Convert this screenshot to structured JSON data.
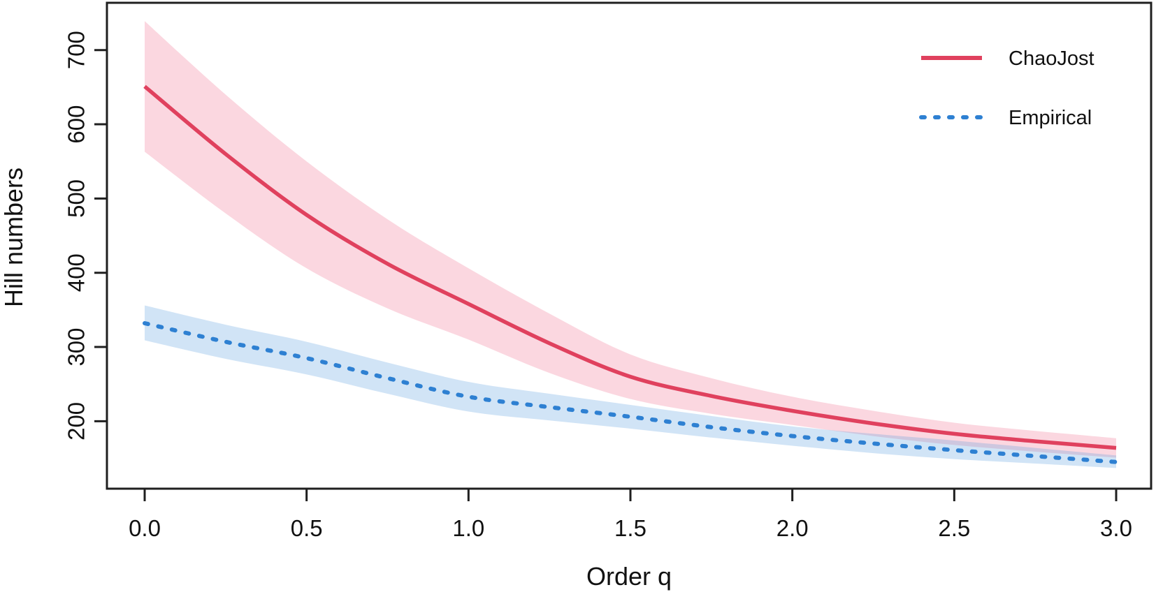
{
  "figure": {
    "background": "#ffffff",
    "text_color": "#111111",
    "frame_color": "#1f1f1f"
  },
  "chart_data": {
    "type": "line",
    "title": "",
    "xlabel": "Order q",
    "ylabel": "Hill numbers",
    "xlim": [
      0,
      3
    ],
    "ylim": [
      100,
      765
    ],
    "grid": false,
    "legend_position": "top-right",
    "x_ticks": {
      "values": [
        0.0,
        0.5,
        1.0,
        1.5,
        2.0,
        2.5,
        3.0
      ],
      "labels": [
        "0.0",
        "0.5",
        "1.0",
        "1.5",
        "2.0",
        "2.5",
        "3.0"
      ]
    },
    "y_ticks": {
      "values": [
        200,
        300,
        400,
        500,
        600,
        700
      ],
      "labels": [
        "200",
        "300",
        "400",
        "500",
        "600",
        "700"
      ]
    },
    "x": [
      0,
      0.25,
      0.5,
      0.75,
      1.0,
      1.25,
      1.5,
      1.75,
      2.0,
      2.25,
      2.5,
      2.75,
      3.0
    ],
    "series": [
      {
        "name": "ChaoJost",
        "style": "solid",
        "color": "#E0415E",
        "band_color": "rgba(242,130,158,0.32)",
        "values": [
          651,
          560,
          478,
          412,
          358,
          305,
          260,
          234,
          214,
          197,
          183,
          173,
          164
        ],
        "upper": [
          739,
          640,
          550,
          472,
          406,
          345,
          290,
          258,
          233,
          214,
          198,
          187,
          177
        ],
        "lower": [
          563,
          480,
          406,
          352,
          310,
          265,
          230,
          210,
          195,
          180,
          168,
          159,
          151
        ]
      },
      {
        "name": "Empirical",
        "style": "dotted",
        "color": "#2E80D2",
        "band_color": "rgba(88,158,222,0.28)",
        "values": [
          332,
          307,
          285,
          258,
          233,
          219,
          206,
          192,
          180,
          170,
          161,
          153,
          145
        ],
        "upper": [
          356,
          330,
          307,
          279,
          253,
          237,
          222,
          207,
          193,
          183,
          174,
          164,
          154
        ],
        "lower": [
          309,
          284,
          263,
          237,
          213,
          201,
          190,
          178,
          167,
          157,
          149,
          143,
          137
        ]
      }
    ]
  }
}
